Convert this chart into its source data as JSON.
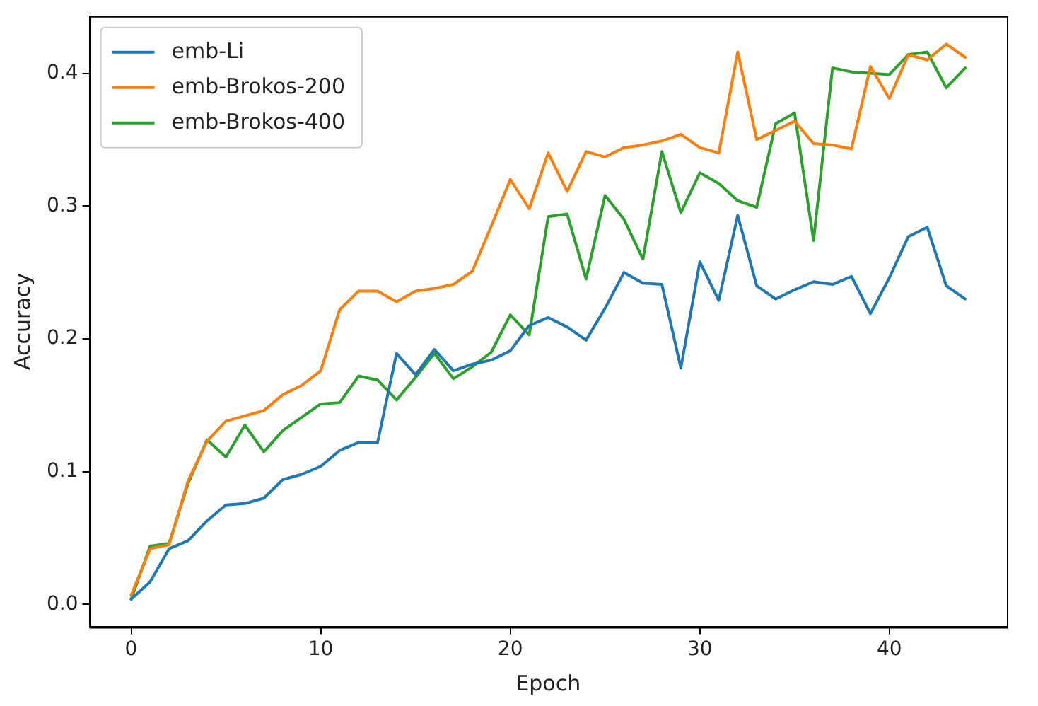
{
  "chart_data": {
    "type": "line",
    "xlabel": "Epoch",
    "ylabel": "Accuracy",
    "x": [
      0,
      1,
      2,
      3,
      4,
      5,
      6,
      7,
      8,
      9,
      10,
      11,
      12,
      13,
      14,
      15,
      16,
      17,
      18,
      19,
      20,
      21,
      22,
      23,
      24,
      25,
      26,
      27,
      28,
      29,
      30,
      31,
      32,
      33,
      34,
      35,
      36,
      37,
      38,
      39,
      40,
      41,
      42,
      43,
      44
    ],
    "series": [
      {
        "name": "emb-Li",
        "color": "#1f77b4",
        "values": [
          0.004,
          0.017,
          0.042,
          0.048,
          0.063,
          0.075,
          0.076,
          0.08,
          0.094,
          0.098,
          0.104,
          0.116,
          0.122,
          0.122,
          0.189,
          0.173,
          0.192,
          0.176,
          0.181,
          0.184,
          0.191,
          0.21,
          0.216,
          0.209,
          0.199,
          0.223,
          0.25,
          0.242,
          0.241,
          0.178,
          0.258,
          0.229,
          0.293,
          0.24,
          0.23,
          0.237,
          0.243,
          0.241,
          0.247,
          0.219,
          0.246,
          0.277,
          0.284,
          0.24,
          0.23
        ]
      },
      {
        "name": "emb-Brokos-200",
        "color": "#ff7f0e",
        "values": [
          0.007,
          0.042,
          0.045,
          0.093,
          0.123,
          0.138,
          0.142,
          0.146,
          0.158,
          0.165,
          0.176,
          0.222,
          0.236,
          0.236,
          0.228,
          0.236,
          0.238,
          0.241,
          0.251,
          0.285,
          0.32,
          0.298,
          0.34,
          0.311,
          0.341,
          0.337,
          0.344,
          0.346,
          0.349,
          0.354,
          0.344,
          0.34,
          0.416,
          0.35,
          0.357,
          0.364,
          0.347,
          0.346,
          0.343,
          0.405,
          0.381,
          0.414,
          0.41,
          0.422,
          0.412
        ]
      },
      {
        "name": "emb-Brokos-400",
        "color": "#2ca02c",
        "values": [
          0.004,
          0.044,
          0.046,
          0.091,
          0.124,
          0.111,
          0.135,
          0.115,
          0.131,
          0.141,
          0.151,
          0.152,
          0.172,
          0.169,
          0.154,
          0.171,
          0.189,
          0.17,
          0.179,
          0.19,
          0.218,
          0.203,
          0.292,
          0.294,
          0.245,
          0.308,
          0.29,
          0.26,
          0.341,
          0.295,
          0.325,
          0.317,
          0.304,
          0.299,
          0.362,
          0.37,
          0.274,
          0.404,
          0.401,
          0.4,
          0.399,
          0.414,
          0.416,
          0.389,
          0.404
        ]
      }
    ],
    "xlim": [
      -2.2,
      46.2
    ],
    "xticks": [
      0,
      10,
      20,
      30,
      40
    ],
    "ylim": [
      -0.017,
      0.443
    ],
    "yticks": [
      {
        "value": 0,
        "label": "0.0"
      },
      {
        "value": 0.1,
        "label": "0.1"
      },
      {
        "value": 0.2,
        "label": "0.2"
      },
      {
        "value": 0.3,
        "label": "0.3"
      },
      {
        "value": 0.4,
        "label": "0.4"
      }
    ],
    "grid": false,
    "legend": "top left",
    "marker": "none",
    "line_style": "solid"
  }
}
